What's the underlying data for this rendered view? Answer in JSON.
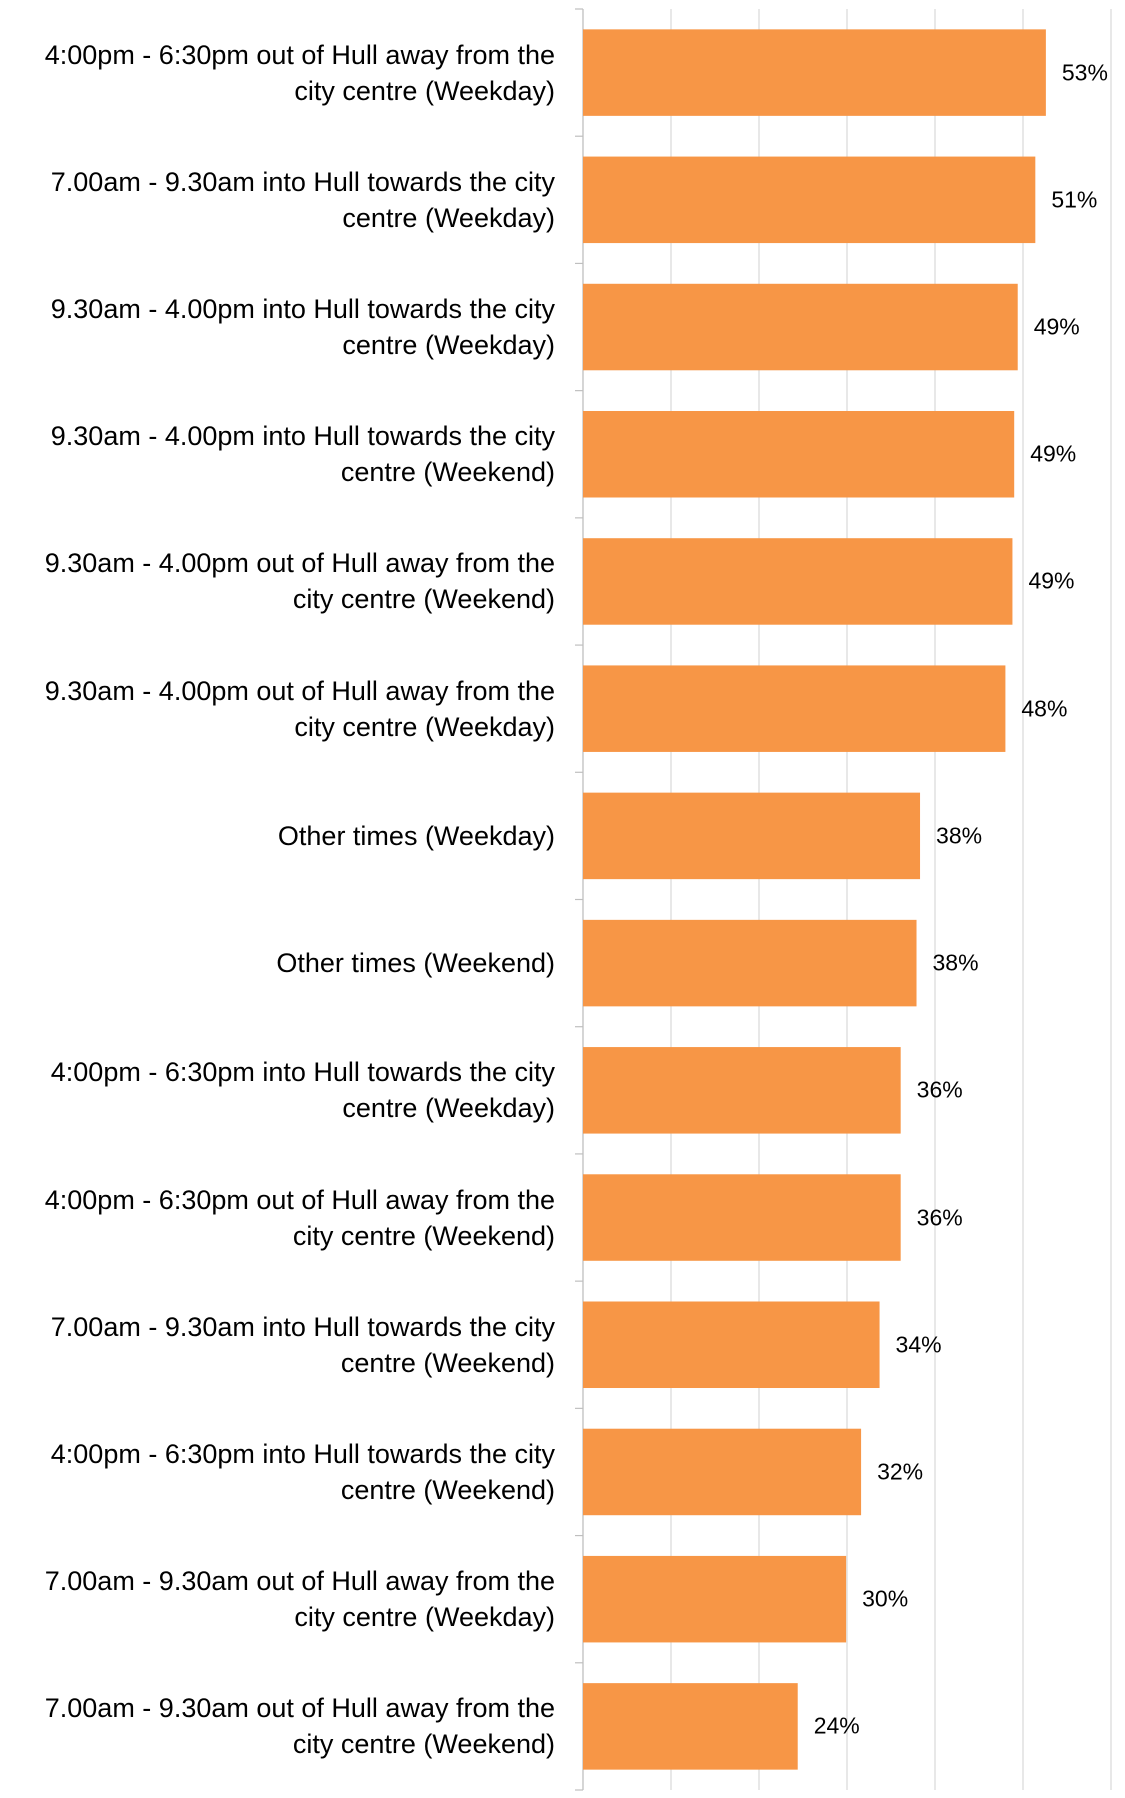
{
  "chart_data": {
    "type": "barh",
    "categories": [
      "4:00pm - 6:30pm out of Hull away from the city centre (Weekday)",
      "7.00am - 9.30am into Hull towards the city centre (Weekday)",
      "9.30am - 4.00pm into Hull towards the city centre (Weekday)",
      "9.30am - 4.00pm into Hull towards the city centre (Weekend)",
      "9.30am - 4.00pm out of Hull away from the city centre (Weekend)",
      "9.30am - 4.00pm out of Hull away from the city centre (Weekday)",
      "Other times (Weekday)",
      "Other times (Weekend)",
      "4:00pm - 6:30pm into Hull towards the city centre (Weekday)",
      "4:00pm - 6:30pm out of Hull away from the city centre (Weekend)",
      "7.00am - 9.30am into Hull towards the city centre (Weekend)",
      "4:00pm - 6:30pm into Hull towards the city centre (Weekend)",
      "7.00am - 9.30am out of Hull away from the city centre (Weekday)",
      "7.00am - 9.30am out of Hull away from the city centre (Weekend)"
    ],
    "values": [
      52.6,
      51.4,
      49.4,
      49.0,
      48.8,
      48.0,
      38.3,
      37.9,
      36.1,
      36.1,
      33.7,
      31.6,
      29.9,
      24.4
    ],
    "value_labels": [
      "53%",
      "51%",
      "49%",
      "49%",
      "49%",
      "48%",
      "38%",
      "38%",
      "36%",
      "36%",
      "34%",
      "32%",
      "30%",
      "24%"
    ],
    "color": "#f79646",
    "xlim": [
      0,
      60
    ],
    "xticks": [
      0,
      10,
      20,
      30,
      40,
      50,
      60
    ],
    "grid": true
  }
}
